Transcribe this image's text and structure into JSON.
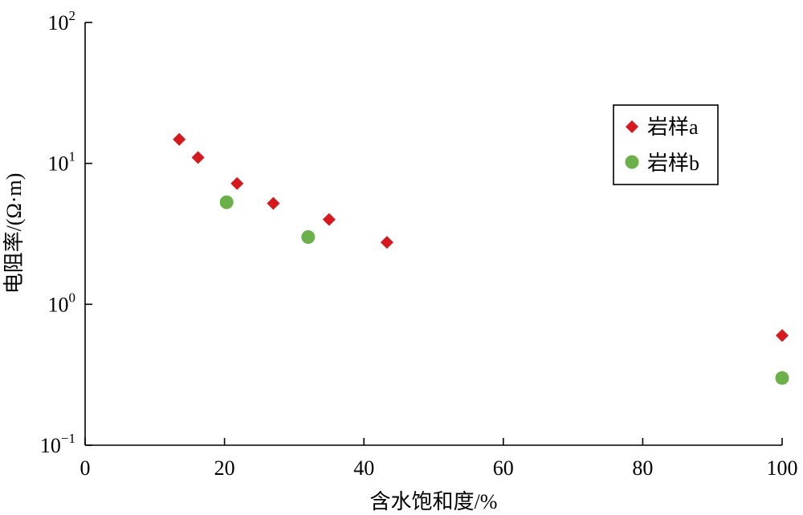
{
  "chart_data": {
    "type": "scatter",
    "title": "",
    "xlabel": "含水饱和度/%",
    "ylabel": "电阻率/(Ω·m)",
    "xlim": [
      0,
      100
    ],
    "ylim": [
      0.1,
      100
    ],
    "yscale": "log",
    "grid": false,
    "legend_position": "top-right",
    "x_ticks": [
      {
        "value": 0,
        "label": "0"
      },
      {
        "value": 20,
        "label": "20"
      },
      {
        "value": 40,
        "label": "40"
      },
      {
        "value": 60,
        "label": "60"
      },
      {
        "value": 80,
        "label": "80"
      },
      {
        "value": 100,
        "label": "100"
      }
    ],
    "y_ticks": [
      {
        "value": 0.1,
        "base": "10",
        "exp": "−1"
      },
      {
        "value": 1,
        "base": "10",
        "exp": "0"
      },
      {
        "value": 10,
        "base": "10",
        "exp": "1"
      },
      {
        "value": 100,
        "base": "10",
        "exp": "2"
      }
    ],
    "series": [
      {
        "name": "岩样a",
        "marker": "diamond",
        "color": "#d7191f",
        "points": [
          {
            "x": 13.5,
            "y": 14.8
          },
          {
            "x": 16.2,
            "y": 11.0
          },
          {
            "x": 21.8,
            "y": 7.2
          },
          {
            "x": 27.0,
            "y": 5.2
          },
          {
            "x": 35.0,
            "y": 4.0
          },
          {
            "x": 43.3,
            "y": 2.75
          },
          {
            "x": 100.0,
            "y": 0.6
          }
        ]
      },
      {
        "name": "岩样b",
        "marker": "circle",
        "color": "#6cb04a",
        "points": [
          {
            "x": 20.3,
            "y": 5.3
          },
          {
            "x": 32.0,
            "y": 3.0
          },
          {
            "x": 100.0,
            "y": 0.3
          }
        ]
      }
    ]
  }
}
